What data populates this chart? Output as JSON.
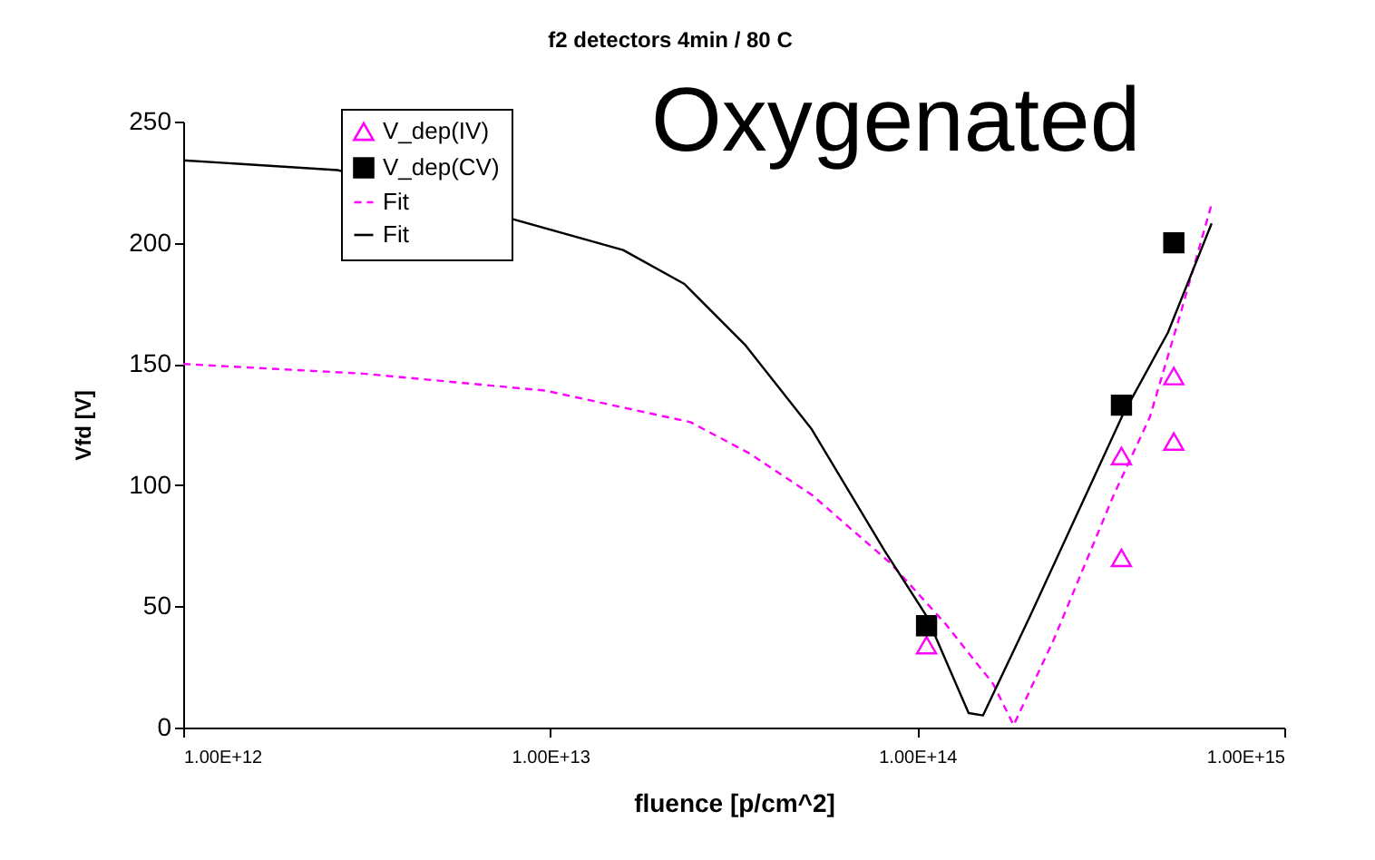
{
  "chart_data": {
    "type": "scatter",
    "title": "f2 detectors 4min / 80 C",
    "xlabel": "fluence [p/cm^2]",
    "ylabel": "Vfd [V]",
    "annotations": [
      "Oxygenated"
    ],
    "log": "x",
    "xlim": [
      1000000000000.0,
      1000000000000000.0
    ],
    "xticks": [
      {
        "value": 1000000000000.0,
        "label": "1.00E+12"
      },
      {
        "value": 10000000000000.0,
        "label": "1.00E+13"
      },
      {
        "value": 100000000000000.0,
        "label": "1.00E+14"
      },
      {
        "value": 1000000000000000.0,
        "label": "1.00E+15"
      }
    ],
    "ylim": [
      0,
      250
    ],
    "yticks": [
      0,
      50,
      100,
      150,
      200,
      250
    ],
    "grid": false,
    "legend": "top left",
    "series": [
      {
        "name": "V_dep(IV)",
        "marker": "triangle",
        "color": "#ff00ff",
        "x": [
          106000000000000.0,
          360000000000000.0,
          360000000000000.0,
          500000000000000.0,
          500000000000000.0
        ],
        "values": [
          34,
          112,
          70,
          145,
          118
        ]
      },
      {
        "name": "V_dep(CV)",
        "marker": "square",
        "color": "#000000",
        "x": [
          106000000000000.0,
          360000000000000.0,
          500000000000000.0
        ],
        "values": [
          42,
          133,
          200
        ]
      },
      {
        "name": "Fit",
        "type": "line",
        "line_style": "dashed",
        "color": "#ff00ff",
        "x": [
          1000000000000.0,
          3100000000000.0,
          9700000000000.0,
          24100000000000.0,
          35000000000000.0,
          51600000000000.0,
          84300000000000.0,
          119000000000000.0,
          161000000000000.0,
          183000000000000.0,
          235000000000000.0,
          343000000000000.0,
          430000000000000.0,
          522000000000000.0,
          634000000000000.0
        ],
        "values": [
          150,
          146,
          139,
          126,
          113,
          96,
          68,
          43,
          18,
          1,
          36,
          96,
          128,
          171,
          216
        ]
      },
      {
        "name": "Fit",
        "type": "line",
        "line_style": "solid",
        "color": "#000000",
        "x": [
          1000000000000.0,
          2630000000000.0,
          15800000000000.0,
          23200000000000.0,
          33900000000000.0,
          51600000000000.0,
          81400000000000.0,
          106000000000000.0,
          138000000000000.0,
          151000000000000.0,
          203000000000000.0,
          363000000000000.0,
          482000000000000.0,
          634000000000000.0
        ],
        "values": [
          234,
          230,
          197,
          183,
          158,
          123,
          73,
          46,
          6,
          5,
          46,
          129,
          163,
          208
        ]
      }
    ]
  }
}
